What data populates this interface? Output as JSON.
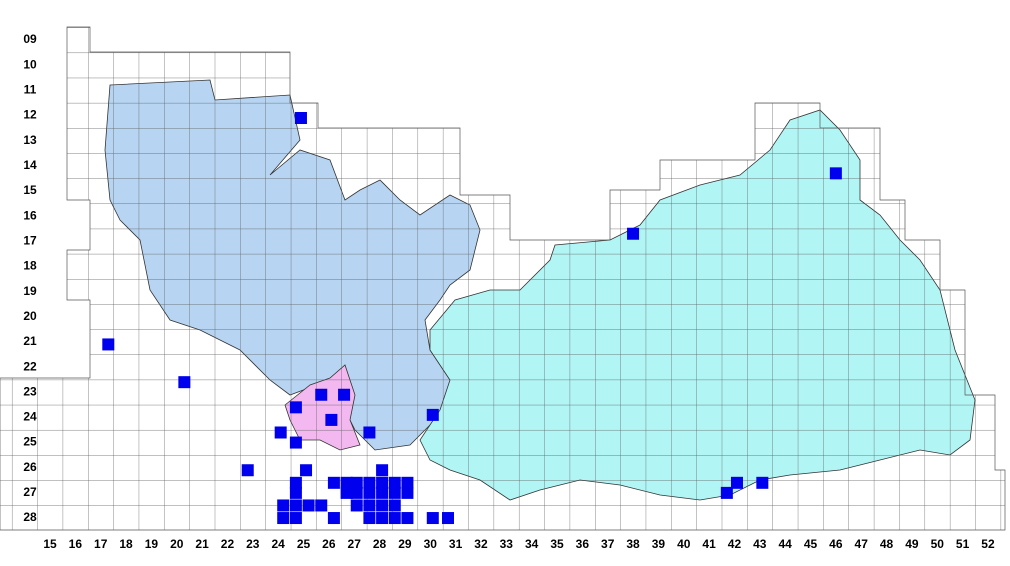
{
  "rows": [
    "09",
    "10",
    "11",
    "12",
    "13",
    "14",
    "15",
    "16",
    "17",
    "18",
    "19",
    "20",
    "21",
    "22",
    "23",
    "24",
    "25",
    "26",
    "27",
    "28"
  ],
  "columns": [
    "15",
    "16",
    "17",
    "18",
    "19",
    "20",
    "21",
    "22",
    "23",
    "24",
    "25",
    "26",
    "27",
    "28",
    "29",
    "30",
    "31",
    "32",
    "33",
    "34",
    "35",
    "36",
    "37",
    "38",
    "39",
    "40",
    "41",
    "42",
    "43",
    "44",
    "45",
    "46",
    "47",
    "48",
    "49",
    "50",
    "51",
    "52"
  ],
  "records": {
    "x": [
      24.9,
      46.0,
      38.0,
      17.3,
      20.3,
      24.7,
      25.7,
      26.6,
      26.1,
      30.1,
      24.1,
      24.7,
      27.6,
      22.8,
      25.1,
      28.1,
      24.7,
      26.2,
      26.7,
      27.1,
      27.6,
      28.1,
      28.6,
      29.1,
      24.7,
      26.7,
      27.1,
      27.6,
      28.1,
      28.6,
      29.1,
      24.2,
      24.7,
      25.2,
      25.7,
      27.1,
      27.6,
      28.1,
      28.6,
      24.2,
      24.7,
      26.2,
      27.6,
      28.1,
      28.6,
      29.1,
      30.1,
      30.7,
      42.1,
      43.1,
      41.7
    ],
    "y": [
      12.1,
      14.3,
      16.7,
      21.1,
      22.6,
      23.6,
      23.1,
      23.1,
      24.1,
      23.9,
      24.6,
      25.0,
      24.6,
      26.1,
      26.1,
      26.1,
      26.6,
      26.6,
      26.6,
      26.6,
      26.6,
      26.6,
      26.6,
      26.6,
      27.0,
      27.0,
      27.0,
      27.0,
      27.0,
      27.0,
      27.0,
      27.5,
      27.5,
      27.5,
      27.5,
      27.5,
      27.5,
      27.5,
      27.5,
      28.0,
      28.0,
      28.0,
      28.0,
      28.0,
      28.0,
      28.0,
      28.0,
      28.0,
      26.6,
      26.6,
      27.0
    ]
  }
}
